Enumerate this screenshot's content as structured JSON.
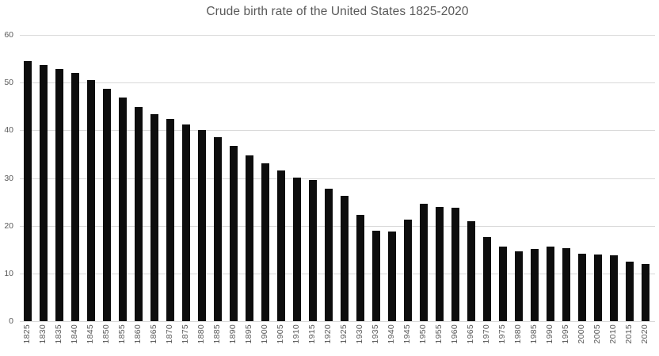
{
  "chart_data": {
    "type": "bar",
    "title": "Crude birth rate of the United States 1825-2020",
    "xlabel": "",
    "ylabel": "",
    "categories": [
      "1825",
      "1830",
      "1835",
      "1840",
      "1845",
      "1850",
      "1855",
      "1860",
      "1865",
      "1870",
      "1875",
      "1880",
      "1885",
      "1890",
      "1895",
      "1900",
      "1905",
      "1910",
      "1915",
      "1920",
      "1925",
      "1930",
      "1935",
      "1940",
      "1945",
      "1950",
      "1955",
      "1960",
      "1965",
      "1970",
      "1975",
      "1980",
      "1985",
      "1990",
      "1995",
      "2000",
      "2005",
      "2010",
      "2015",
      "2020"
    ],
    "values": [
      54.6,
      53.7,
      52.9,
      52.0,
      50.6,
      48.7,
      46.8,
      44.9,
      43.4,
      42.4,
      41.3,
      40.1,
      38.6,
      36.7,
      34.8,
      33.0,
      31.5,
      30.1,
      29.6,
      27.8,
      26.2,
      22.3,
      19.0,
      18.8,
      21.2,
      24.6,
      24.0,
      23.7,
      20.9,
      17.6,
      15.6,
      14.7,
      15.2,
      15.6,
      15.3,
      14.2,
      14.0,
      13.8,
      12.5,
      11.9
    ],
    "ylim": [
      0,
      60
    ],
    "yticks": [
      0,
      10,
      20,
      30,
      40,
      50,
      60
    ],
    "grid": true,
    "legend": "none",
    "colors": {
      "bar": "#0d0d0d",
      "title_text": "#595959",
      "tick_text": "#595959",
      "gridline": "#d9d9d9",
      "background": "#ffffff"
    }
  }
}
